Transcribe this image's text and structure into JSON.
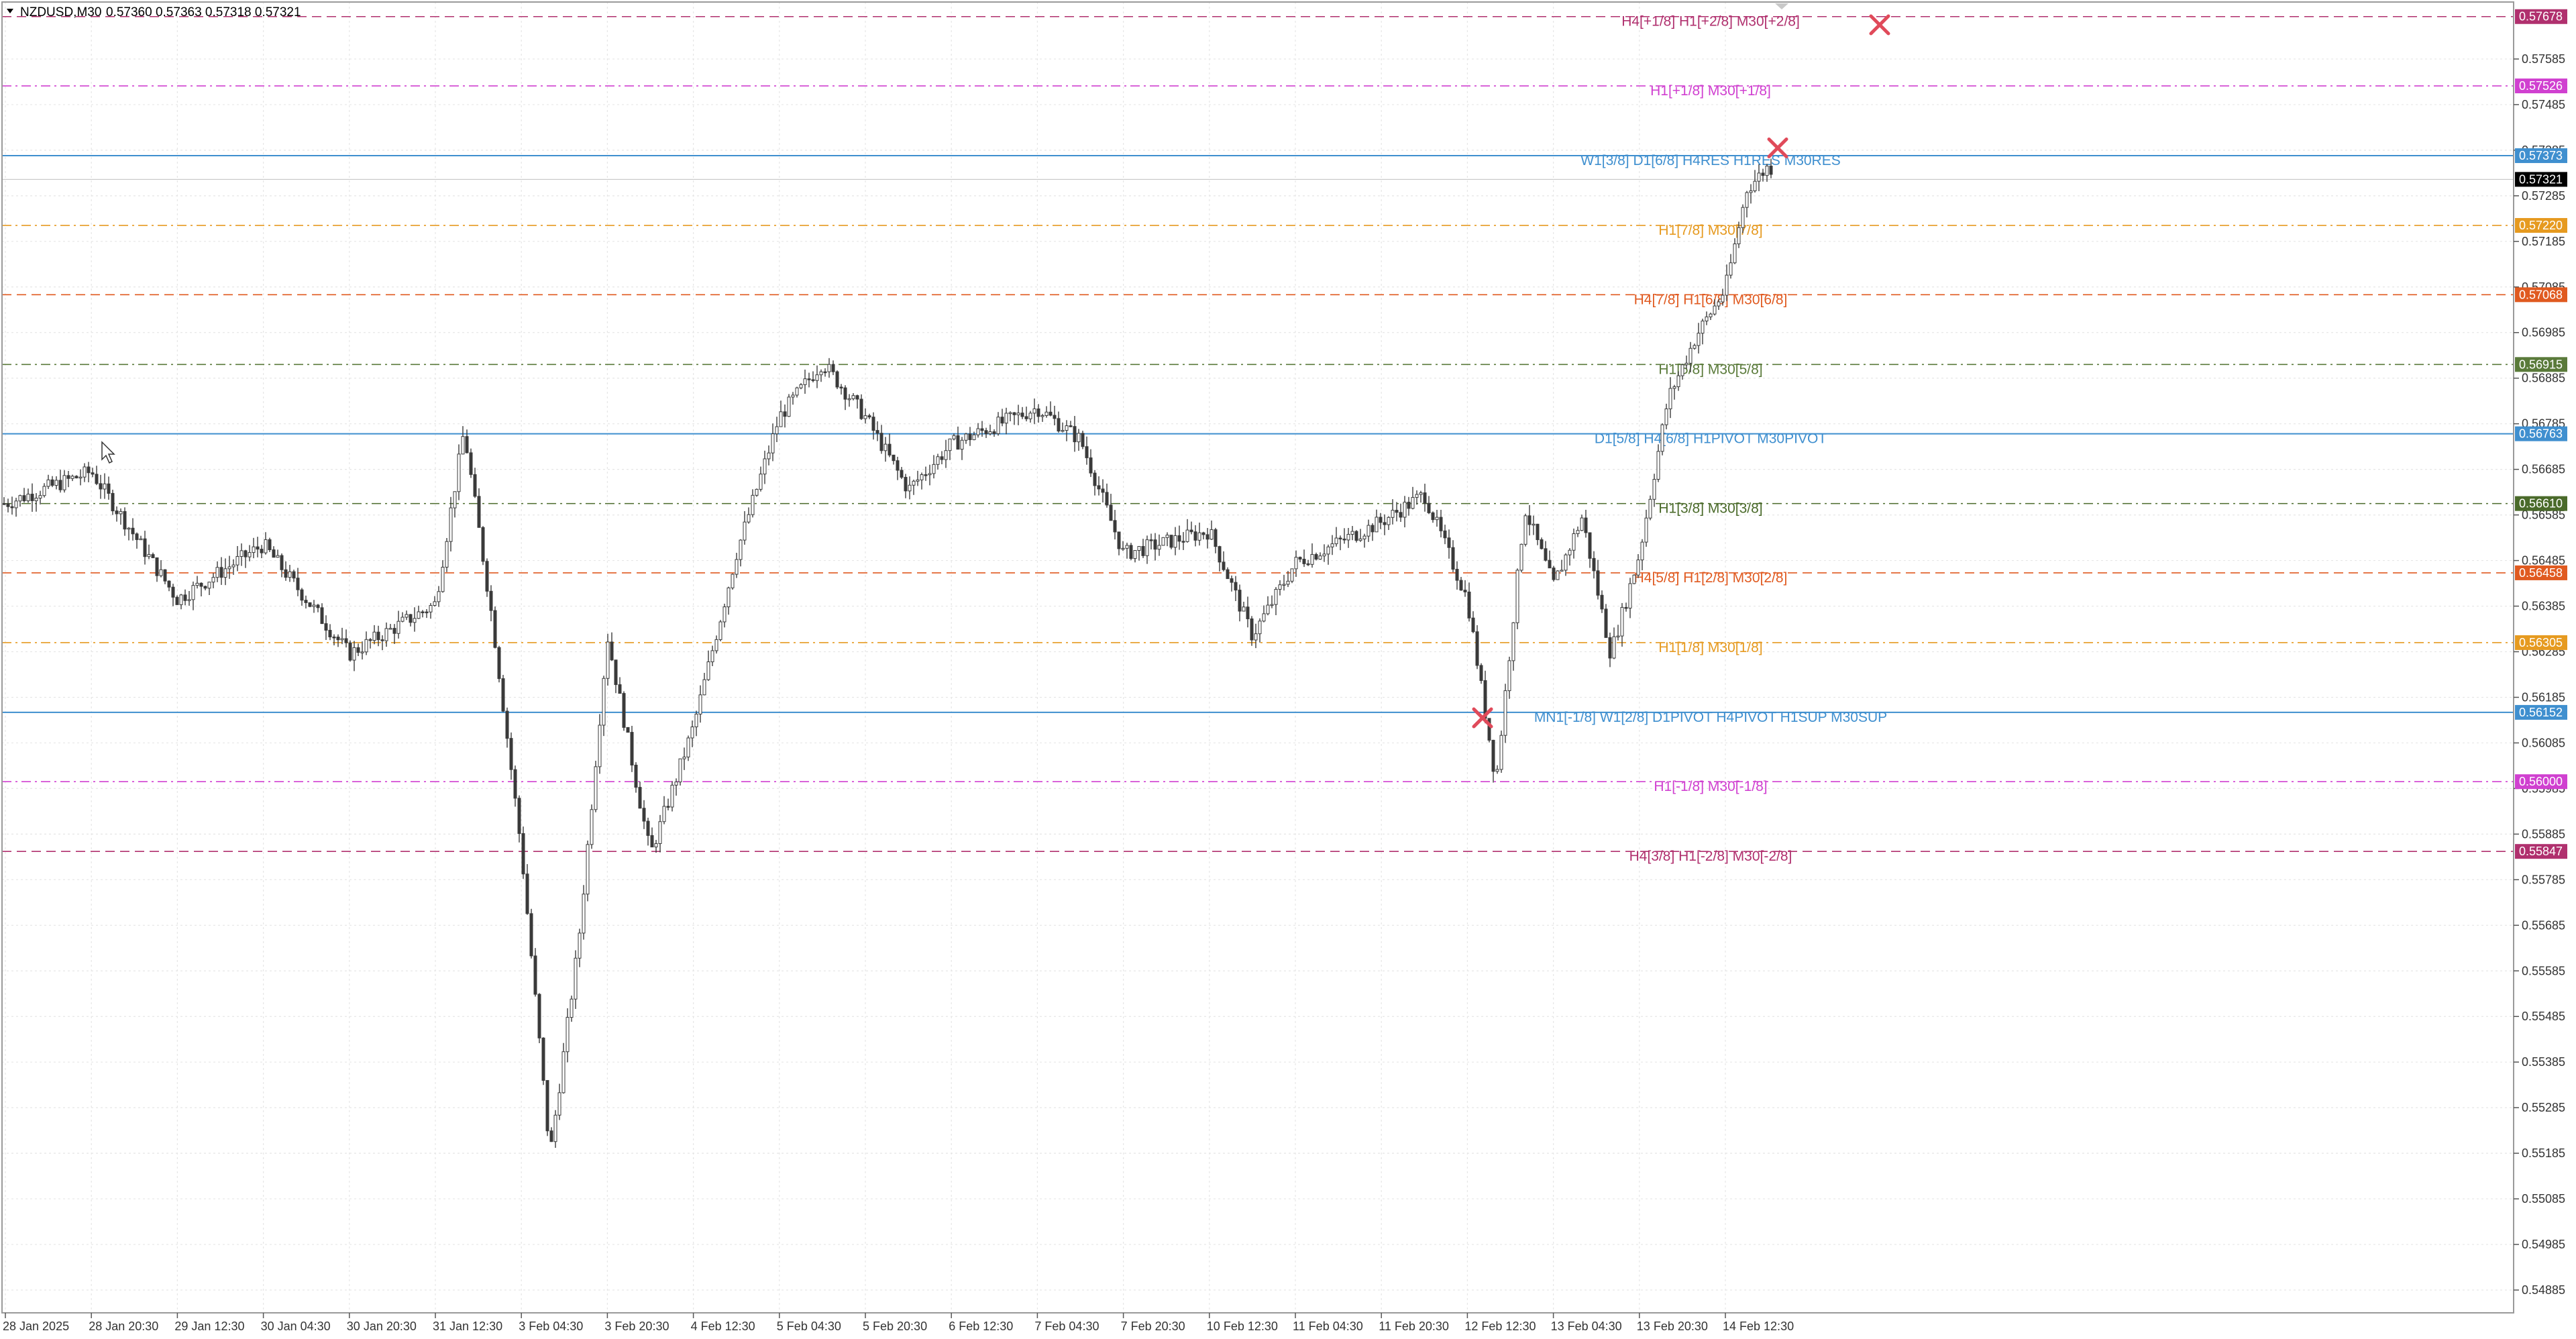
{
  "header": {
    "symbol": "NZDUSD,M30",
    "ohlc": "0.57360 0.57363 0.57318 0.57321",
    "dropdown_icon": "triangle-down-icon"
  },
  "chart_data": {
    "type": "candlestick",
    "title": "NZDUSD,M30",
    "ylim": [
      0.54835,
      0.5771
    ],
    "grid": true,
    "y_ticks": [
      "0.57585",
      "0.57485",
      "0.57385",
      "0.57285",
      "0.57185",
      "0.57085",
      "0.56985",
      "0.56885",
      "0.56785",
      "0.56685",
      "0.56585",
      "0.56485",
      "0.56385",
      "0.56285",
      "0.56185",
      "0.56085",
      "0.55985",
      "0.55885",
      "0.55785",
      "0.55685",
      "0.55585",
      "0.55485",
      "0.55385",
      "0.55285",
      "0.55185",
      "0.55085",
      "0.54985",
      "0.54885"
    ],
    "x_ticks": [
      "28 Jan 2025",
      "28 Jan 20:30",
      "29 Jan 12:30",
      "30 Jan 04:30",
      "30 Jan 20:30",
      "31 Jan 12:30",
      "3 Feb 04:30",
      "3 Feb 20:30",
      "4 Feb 12:30",
      "5 Feb 04:30",
      "5 Feb 20:30",
      "6 Feb 12:30",
      "7 Feb 04:30",
      "7 Feb 20:30",
      "10 Feb 12:30",
      "11 Feb 04:30",
      "11 Feb 20:30",
      "12 Feb 12:30",
      "13 Feb 04:30",
      "13 Feb 20:30",
      "14 Feb 12:30"
    ],
    "price_series": [
      {
        "x": "28 Jan 2025",
        "y": 0.5661
      },
      {
        "x": "28 Jan 20:30",
        "y": 0.5668
      },
      {
        "x": "29 Jan 12:30",
        "y": 0.564
      },
      {
        "x": "30 Jan 04:30",
        "y": 0.5652
      },
      {
        "x": "30 Jan 20:30",
        "y": 0.5628
      },
      {
        "x": "31 Jan 12:30",
        "y": 0.5639
      },
      {
        "x": "31 Jan 12:30",
        "y": 0.5677
      },
      {
        "x": "31 Jan 12:30",
        "y": 0.5635
      },
      {
        "x": "3 Feb 04:30",
        "y": 0.5585
      },
      {
        "x": "3 Feb 04:30",
        "y": 0.5518
      },
      {
        "x": "3 Feb 04:30",
        "y": 0.5565
      },
      {
        "x": "3 Feb 20:30",
        "y": 0.5632
      },
      {
        "x": "3 Feb 20:30",
        "y": 0.5584
      },
      {
        "x": "4 Feb 12:30",
        "y": 0.5612
      },
      {
        "x": "4 Feb 12:30",
        "y": 0.565
      },
      {
        "x": "5 Feb 04:30",
        "y": 0.568
      },
      {
        "x": "5 Feb 04:30",
        "y": 0.5692
      },
      {
        "x": "5 Feb 20:30",
        "y": 0.568
      },
      {
        "x": "5 Feb 20:30",
        "y": 0.5664
      },
      {
        "x": "6 Feb 12:30",
        "y": 0.5674
      },
      {
        "x": "7 Feb 04:30",
        "y": 0.5682
      },
      {
        "x": "7 Feb 04:30",
        "y": 0.5675
      },
      {
        "x": "7 Feb 20:30",
        "y": 0.565
      },
      {
        "x": "10 Feb 12:30",
        "y": 0.5655
      },
      {
        "x": "10 Feb 12:30",
        "y": 0.5632
      },
      {
        "x": "11 Feb 04:30",
        "y": 0.5648
      },
      {
        "x": "11 Feb 20:30",
        "y": 0.5657
      },
      {
        "x": "11 Feb 20:30",
        "y": 0.5663
      },
      {
        "x": "12 Feb 12:30",
        "y": 0.564
      },
      {
        "x": "12 Feb 12:30",
        "y": 0.56
      },
      {
        "x": "12 Feb 12:30",
        "y": 0.566
      },
      {
        "x": "13 Feb 04:30",
        "y": 0.5643
      },
      {
        "x": "13 Feb 04:30",
        "y": 0.5658
      },
      {
        "x": "13 Feb 04:30",
        "y": 0.5628
      },
      {
        "x": "13 Feb 20:30",
        "y": 0.565
      },
      {
        "x": "13 Feb 20:30",
        "y": 0.5684
      },
      {
        "x": "13 Feb 20:30",
        "y": 0.5698
      },
      {
        "x": "14 Feb 12:30",
        "y": 0.5708
      },
      {
        "x": "14 Feb 12:30",
        "y": 0.573
      },
      {
        "x": "14 Feb 12:30",
        "y": 0.5735
      },
      {
        "x": "14 Feb 12:30",
        "y": 0.5732
      }
    ],
    "levels": [
      {
        "label": "H4[+1/8] H1[+2/8] M30[+2/8]",
        "price": "0.57678",
        "color": "#b0306e",
        "dash": "dash"
      },
      {
        "label": "H1[+1/8] M30[+1/8]",
        "price": "0.57526",
        "color": "#d040d0",
        "dash": "dashdot"
      },
      {
        "label": "W1[3/8] D1[6/8] H4RES H1RES M30RES",
        "price": "0.57373",
        "color": "#3f8fcf",
        "dash": "solid"
      },
      {
        "label": "H1[7/8] M30[7/8]",
        "price": "0.57220",
        "color": "#e69a20",
        "dash": "dashdot"
      },
      {
        "label": "H4[7/8] H1[6/8] M30[6/8]",
        "price": "0.57068",
        "color": "#e05a20",
        "dash": "dash"
      },
      {
        "label": "H1[5/8] M30[5/8]",
        "price": "0.56915",
        "color": "#5a7a3a",
        "dash": "dashdot"
      },
      {
        "label": "D1[5/8] H4[6/8] H1PIVOT M30PIVOT",
        "price": "0.56763",
        "color": "#3f8fcf",
        "dash": "solid"
      },
      {
        "label": "H1[3/8] M30[3/8]",
        "price": "0.56610",
        "color": "#4a6a2a",
        "dash": "dashdot"
      },
      {
        "label": "H4[5/8] H1[2/8] M30[2/8]",
        "price": "0.56458",
        "color": "#e05a20",
        "dash": "dash"
      },
      {
        "label": "H1[1/8] M30[1/8]",
        "price": "0.56305",
        "color": "#e69a20",
        "dash": "dashdot"
      },
      {
        "label": "MN1[-1/8] W1[2/8] D1PIVOT H4PIVOT H1SUP M30SUP",
        "price": "0.56152",
        "color": "#3f8fcf",
        "dash": "solid"
      },
      {
        "label": "H1[-1/8] M30[-1/8]",
        "price": "0.56000",
        "color": "#d040d0",
        "dash": "dashdot"
      },
      {
        "label": "H4[3/8] H1[-2/8] M30[-2/8]",
        "price": "0.55847",
        "color": "#b0306e",
        "dash": "dash"
      }
    ],
    "current_price": "0.57321",
    "markers": [
      {
        "name": "cross-marker-top",
        "x": "14 Feb 12:30",
        "y": 0.5739
      },
      {
        "name": "cross-marker-upper",
        "x": "14 Feb 12:30",
        "y": 0.5766
      },
      {
        "name": "cross-marker-low",
        "x": "12 Feb 12:30",
        "y": 0.5614
      }
    ]
  }
}
